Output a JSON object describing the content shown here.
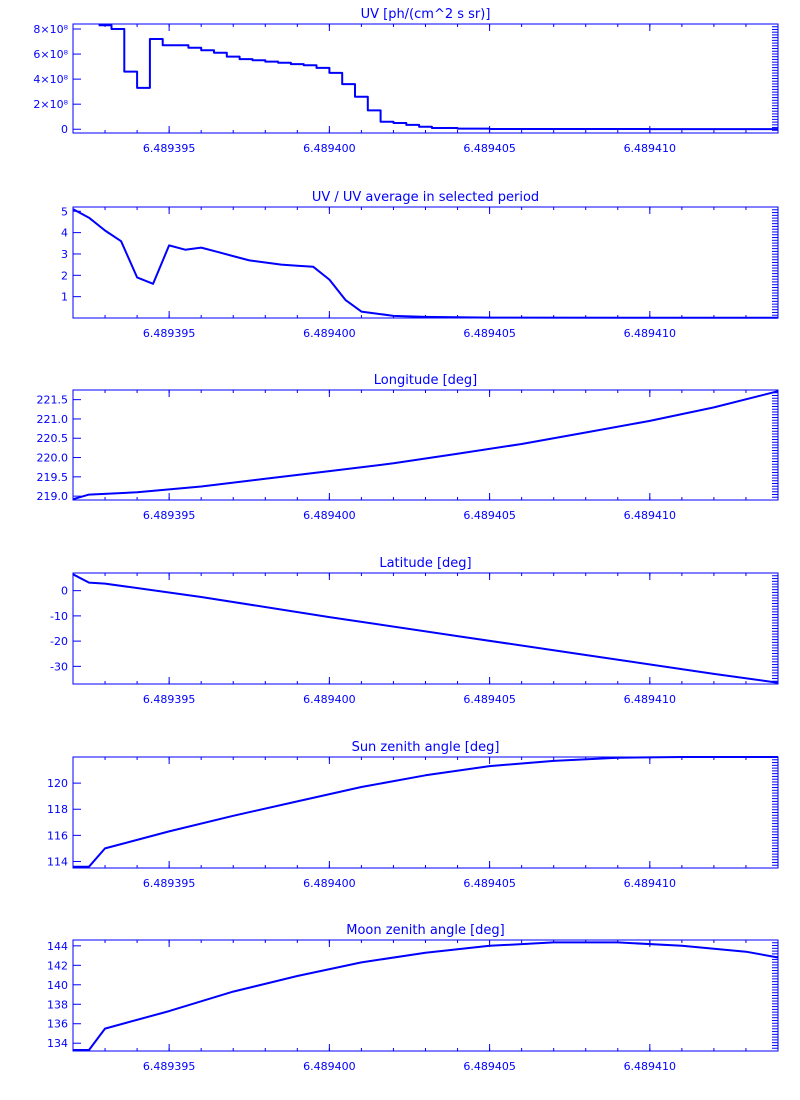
{
  "colors": {
    "line": "#0000ff",
    "background": "#ffffff"
  },
  "chart_data": [
    {
      "type": "line",
      "title": "UV [ph/(cm^2 s sr)]",
      "xlim": [
        6.489392,
        6.489414
      ],
      "ylim": [
        -0.3,
        8.4
      ],
      "y_scale_label": "×10⁸",
      "x_ticks": [
        6.489395,
        6.4894,
        6.489405,
        6.48941
      ],
      "x_tick_labels": [
        "6.489395",
        "6.489400",
        "6.489405",
        "6.489410"
      ],
      "y_ticks": [
        0,
        2,
        4,
        6,
        8
      ],
      "y_tick_labels": [
        "0",
        "2×10⁸",
        "4×10⁸",
        "6×10⁸",
        "8×10⁸"
      ],
      "step": true,
      "x": [
        6.4893928,
        6.4893932,
        6.4893936,
        6.489394,
        6.4893944,
        6.4893948,
        6.4893952,
        6.4893956,
        6.489396,
        6.4893964,
        6.4893968,
        6.4893972,
        6.4893976,
        6.489398,
        6.4893984,
        6.4893988,
        6.4893992,
        6.4893996,
        6.4894,
        6.4894004,
        6.4894008,
        6.4894012,
        6.4894016,
        6.489402,
        6.4894024,
        6.4894028,
        6.4894032,
        6.489404,
        6.489405,
        6.48941,
        6.489414
      ],
      "y": [
        8.3,
        8.0,
        4.6,
        3.3,
        7.2,
        6.7,
        6.7,
        6.5,
        6.3,
        6.1,
        5.8,
        5.6,
        5.5,
        5.4,
        5.3,
        5.2,
        5.1,
        4.9,
        4.5,
        3.6,
        2.6,
        1.5,
        0.6,
        0.5,
        0.35,
        0.2,
        0.1,
        0.05,
        0.02,
        0.01,
        0.01
      ]
    },
    {
      "type": "line",
      "title": "UV / UV average in selected period",
      "xlim": [
        6.489392,
        6.489414
      ],
      "ylim": [
        0,
        5.2
      ],
      "x_ticks": [
        6.489395,
        6.4894,
        6.489405,
        6.48941
      ],
      "x_tick_labels": [
        "6.489395",
        "6.489400",
        "6.489405",
        "6.489410"
      ],
      "y_ticks": [
        1,
        2,
        3,
        4,
        5
      ],
      "y_tick_labels": [
        "1",
        "2",
        "3",
        "4",
        "5"
      ],
      "x": [
        6.489392,
        6.4893925,
        6.489393,
        6.4893935,
        6.489394,
        6.4893945,
        6.489395,
        6.4893955,
        6.489396,
        6.4893965,
        6.489397,
        6.4893975,
        6.489398,
        6.4893985,
        6.489399,
        6.4893995,
        6.4894,
        6.4894005,
        6.489401,
        6.4894015,
        6.489402,
        6.489403,
        6.489405,
        6.48941,
        6.489414
      ],
      "y": [
        5.1,
        4.7,
        4.1,
        3.6,
        1.9,
        1.6,
        3.4,
        3.2,
        3.3,
        3.1,
        2.9,
        2.7,
        2.6,
        2.5,
        2.45,
        2.4,
        1.8,
        0.85,
        0.3,
        0.2,
        0.1,
        0.05,
        0.02,
        0.01,
        0.01
      ]
    },
    {
      "type": "line",
      "title": "Longitude [deg]",
      "xlim": [
        6.489392,
        6.489414
      ],
      "ylim": [
        218.9,
        221.75
      ],
      "x_ticks": [
        6.489395,
        6.4894,
        6.489405,
        6.48941
      ],
      "x_tick_labels": [
        "6.489395",
        "6.489400",
        "6.489405",
        "6.489410"
      ],
      "y_ticks": [
        219.0,
        219.5,
        220.0,
        220.5,
        221.0,
        221.5
      ],
      "y_tick_labels": [
        "219.0",
        "219.5",
        "220.0",
        "220.5",
        "221.0",
        "221.5"
      ],
      "x": [
        6.489392,
        6.4893925,
        6.489394,
        6.489396,
        6.489398,
        6.4894,
        6.489402,
        6.489404,
        6.489406,
        6.489408,
        6.48941,
        6.489412,
        6.489414
      ],
      "y": [
        218.92,
        219.04,
        219.1,
        219.25,
        219.45,
        219.65,
        219.85,
        220.1,
        220.35,
        220.65,
        220.95,
        221.3,
        221.72
      ]
    },
    {
      "type": "line",
      "title": "Latitude [deg]",
      "xlim": [
        6.489392,
        6.489414
      ],
      "ylim": [
        -37,
        7
      ],
      "x_ticks": [
        6.489395,
        6.4894,
        6.489405,
        6.48941
      ],
      "x_tick_labels": [
        "6.489395",
        "6.489400",
        "6.489405",
        "6.489410"
      ],
      "y_ticks": [
        0,
        -10,
        -20,
        -30
      ],
      "y_tick_labels": [
        "0",
        "-10",
        "-20",
        "-30"
      ],
      "x": [
        6.489392,
        6.4893925,
        6.489393,
        6.489396,
        6.4894,
        6.489404,
        6.489408,
        6.489412,
        6.489414
      ],
      "y": [
        6.5,
        3.2,
        2.8,
        -2.5,
        -10.5,
        -18.0,
        -25.5,
        -33.0,
        -36.5
      ]
    },
    {
      "type": "line",
      "title": "Sun zenith angle [deg]",
      "xlim": [
        6.489392,
        6.489414
      ],
      "ylim": [
        113.5,
        122.0
      ],
      "x_ticks": [
        6.489395,
        6.4894,
        6.489405,
        6.48941
      ],
      "x_tick_labels": [
        "6.489395",
        "6.489400",
        "6.489405",
        "6.489410"
      ],
      "y_ticks": [
        114,
        116,
        118,
        120
      ],
      "y_tick_labels": [
        "114",
        "116",
        "118",
        "120"
      ],
      "x": [
        6.489392,
        6.4893925,
        6.489393,
        6.489395,
        6.489397,
        6.489399,
        6.489401,
        6.489403,
        6.489405,
        6.489407,
        6.489409,
        6.489411,
        6.489414
      ],
      "y": [
        113.6,
        113.6,
        115.0,
        116.3,
        117.5,
        118.6,
        119.7,
        120.6,
        121.3,
        121.7,
        121.95,
        122.0,
        122.0
      ]
    },
    {
      "type": "line",
      "title": "Moon zenith angle [deg]",
      "xlim": [
        6.489392,
        6.489414
      ],
      "ylim": [
        133.2,
        144.6
      ],
      "x_ticks": [
        6.489395,
        6.4894,
        6.489405,
        6.48941
      ],
      "x_tick_labels": [
        "6.489395",
        "6.489400",
        "6.489405",
        "6.489410"
      ],
      "y_ticks": [
        134,
        136,
        138,
        140,
        142,
        144
      ],
      "y_tick_labels": [
        "134",
        "136",
        "138",
        "140",
        "142",
        "144"
      ],
      "x": [
        6.489392,
        6.4893925,
        6.489393,
        6.489395,
        6.489397,
        6.489399,
        6.489401,
        6.489403,
        6.489405,
        6.489407,
        6.489409,
        6.489411,
        6.489413,
        6.489414
      ],
      "y": [
        133.3,
        133.3,
        135.5,
        137.3,
        139.3,
        140.9,
        142.3,
        143.3,
        144.0,
        144.35,
        144.35,
        144.0,
        143.4,
        142.8
      ]
    }
  ]
}
